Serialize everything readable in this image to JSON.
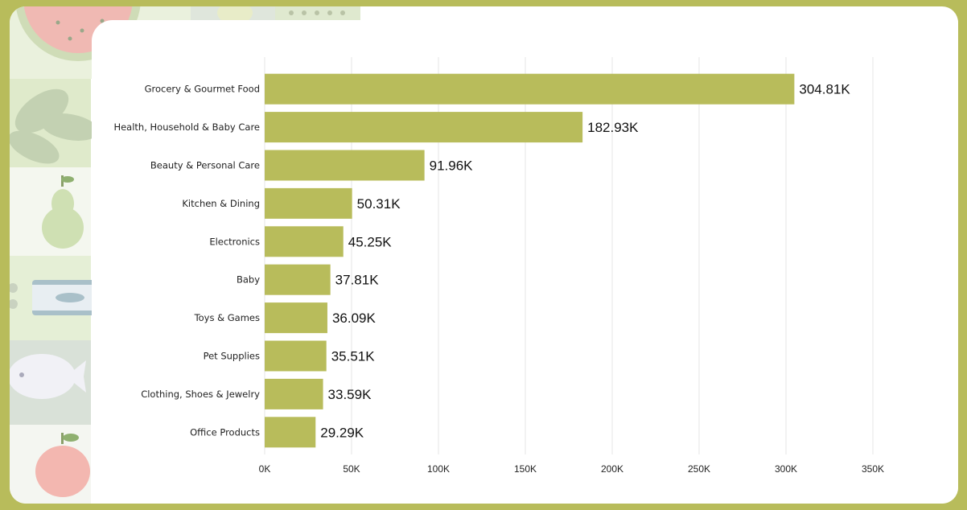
{
  "colors": {
    "frame": "#b8bc5b",
    "bar": "#b8bc5b",
    "grid": "#e6e6e6"
  },
  "chart_data": {
    "type": "bar",
    "orientation": "horizontal",
    "title": "",
    "xlabel": "",
    "ylabel": "",
    "xlim": [
      0,
      350000
    ],
    "grid": true,
    "categories": [
      "Grocery & Gourmet Food",
      "Health, Household & Baby Care",
      "Beauty & Personal Care",
      "Kitchen & Dining",
      "Electronics",
      "Baby",
      "Toys & Games",
      "Pet Supplies",
      "Clothing, Shoes & Jewelry",
      "Office Products"
    ],
    "values": [
      304810,
      182930,
      91960,
      50310,
      45250,
      37810,
      36090,
      35510,
      33590,
      29290
    ],
    "value_labels": [
      "304.81K",
      "182.93K",
      "91.96K",
      "50.31K",
      "45.25K",
      "37.81K",
      "36.09K",
      "35.51K",
      "33.59K",
      "29.29K"
    ],
    "x_ticks": [
      0,
      50000,
      100000,
      150000,
      200000,
      250000,
      300000,
      350000
    ],
    "x_tick_labels": [
      "0K",
      "50K",
      "100K",
      "150K",
      "200K",
      "250K",
      "300K",
      "350K"
    ]
  }
}
